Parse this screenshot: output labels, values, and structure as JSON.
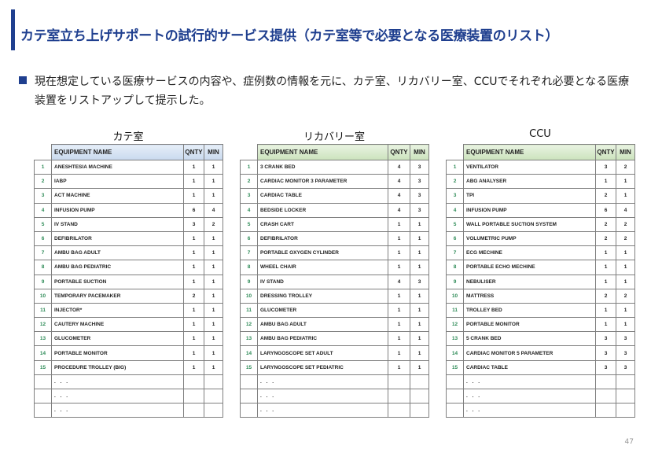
{
  "title": "カテ室立ち上げサポートの試行的サービス提供（カテ室等で必要となる医療装置のリスト）",
  "bullet": "現在想定している医療サービスの内容や、症例数の情報を元に、カテ室、リカバリー室、CCUでそれぞれ必要となる医療装置をリストアップして提示した。",
  "page_number": "47",
  "header": {
    "equipment": "EQUIPMENT NAME",
    "qnty": "QNTY",
    "min": "MIN"
  },
  "ellipsis": ". . .",
  "tables": [
    {
      "title": "カテ室",
      "rows": [
        {
          "n": "1",
          "name": "ANESHTESIA MACHINE",
          "q": "1",
          "m": "1"
        },
        {
          "n": "2",
          "name": "IABP",
          "q": "1",
          "m": "1"
        },
        {
          "n": "3",
          "name": "ACT MACHINE",
          "q": "1",
          "m": "1"
        },
        {
          "n": "4",
          "name": "INFUSION PUMP",
          "q": "6",
          "m": "4"
        },
        {
          "n": "5",
          "name": "IV STAND",
          "q": "3",
          "m": "2"
        },
        {
          "n": "6",
          "name": "DEFIBRILATOR",
          "q": "1",
          "m": "1"
        },
        {
          "n": "7",
          "name": "AMBU BAG ADULT",
          "q": "1",
          "m": "1"
        },
        {
          "n": "8",
          "name": "AMBU BAG PEDIATRIC",
          "q": "1",
          "m": "1"
        },
        {
          "n": "9",
          "name": "PORTABLE SUCTION",
          "q": "1",
          "m": "1"
        },
        {
          "n": "10",
          "name": "TEMPORARY PACEMAKER",
          "q": "2",
          "m": "1"
        },
        {
          "n": "11",
          "name": "INJECTOR*",
          "q": "1",
          "m": "1"
        },
        {
          "n": "12",
          "name": "CAUTERY MACHINE",
          "q": "1",
          "m": "1"
        },
        {
          "n": "13",
          "name": "GLUCOMETER",
          "q": "1",
          "m": "1"
        },
        {
          "n": "14",
          "name": "PORTABLE MONITOR",
          "q": "1",
          "m": "1"
        },
        {
          "n": "15",
          "name": "PROCEDURE TROLLEY (BIG)",
          "q": "1",
          "m": "1"
        }
      ]
    },
    {
      "title": "リカバリー室",
      "rows": [
        {
          "n": "1",
          "name": "3 CRANK BED",
          "q": "4",
          "m": "3"
        },
        {
          "n": "2",
          "name": "CARDIAC MONITOR 3 PARAMETER",
          "q": "4",
          "m": "3"
        },
        {
          "n": "3",
          "name": "CARDIAC TABLE",
          "q": "4",
          "m": "3"
        },
        {
          "n": "4",
          "name": "BEDSIDE LOCKER",
          "q": "4",
          "m": "3"
        },
        {
          "n": "5",
          "name": "CRASH CART",
          "q": "1",
          "m": "1"
        },
        {
          "n": "6",
          "name": "DEFIBRILATOR",
          "q": "1",
          "m": "1"
        },
        {
          "n": "7",
          "name": "PORTABLE OXYGEN CYLINDER",
          "q": "1",
          "m": "1"
        },
        {
          "n": "8",
          "name": "WHEEL CHAIR",
          "q": "1",
          "m": "1"
        },
        {
          "n": "9",
          "name": "IV STAND",
          "q": "4",
          "m": "3"
        },
        {
          "n": "10",
          "name": "DRESSING TROLLEY",
          "q": "1",
          "m": "1"
        },
        {
          "n": "11",
          "name": "GLUCOMETER",
          "q": "1",
          "m": "1"
        },
        {
          "n": "12",
          "name": "AMBU BAG ADULT",
          "q": "1",
          "m": "1"
        },
        {
          "n": "13",
          "name": "AMBU BAG PEDIATRIC",
          "q": "1",
          "m": "1"
        },
        {
          "n": "14",
          "name": "LARYNGOSCOPE SET ADULT",
          "q": "1",
          "m": "1"
        },
        {
          "n": "15",
          "name": "LARYNGOSCOPE SET PEDIATRIC",
          "q": "1",
          "m": "1"
        }
      ]
    },
    {
      "title": "CCU",
      "rows": [
        {
          "n": "1",
          "name": "VENTILATOR",
          "q": "3",
          "m": "2"
        },
        {
          "n": "2",
          "name": "ABG ANALYSER",
          "q": "1",
          "m": "1"
        },
        {
          "n": "3",
          "name": "TPI",
          "q": "2",
          "m": "1"
        },
        {
          "n": "4",
          "name": "INFUSION PUMP",
          "q": "6",
          "m": "4"
        },
        {
          "n": "5",
          "name": "WALL PORTABLE SUCTION SYSTEM",
          "q": "2",
          "m": "2"
        },
        {
          "n": "6",
          "name": "VOLUMETRIC PUMP",
          "q": "2",
          "m": "2"
        },
        {
          "n": "7",
          "name": "ECG MECHINE",
          "q": "1",
          "m": "1"
        },
        {
          "n": "8",
          "name": "PORTABLE ECHO MECHINE",
          "q": "1",
          "m": "1"
        },
        {
          "n": "9",
          "name": "NEBULISER",
          "q": "1",
          "m": "1"
        },
        {
          "n": "10",
          "name": "MATTRESS",
          "q": "2",
          "m": "2"
        },
        {
          "n": "11",
          "name": "TROLLEY BED",
          "q": "1",
          "m": "1"
        },
        {
          "n": "12",
          "name": "PORTABLE MONITOR",
          "q": "1",
          "m": "1"
        },
        {
          "n": "13",
          "name": "5 CRANK BED",
          "q": "3",
          "m": "3"
        },
        {
          "n": "14",
          "name": "CARDIAC MONITOR 5 PARAMETER",
          "q": "3",
          "m": "3"
        },
        {
          "n": "15",
          "name": "CARDIAC TABLE",
          "q": "3",
          "m": "3"
        }
      ]
    }
  ]
}
